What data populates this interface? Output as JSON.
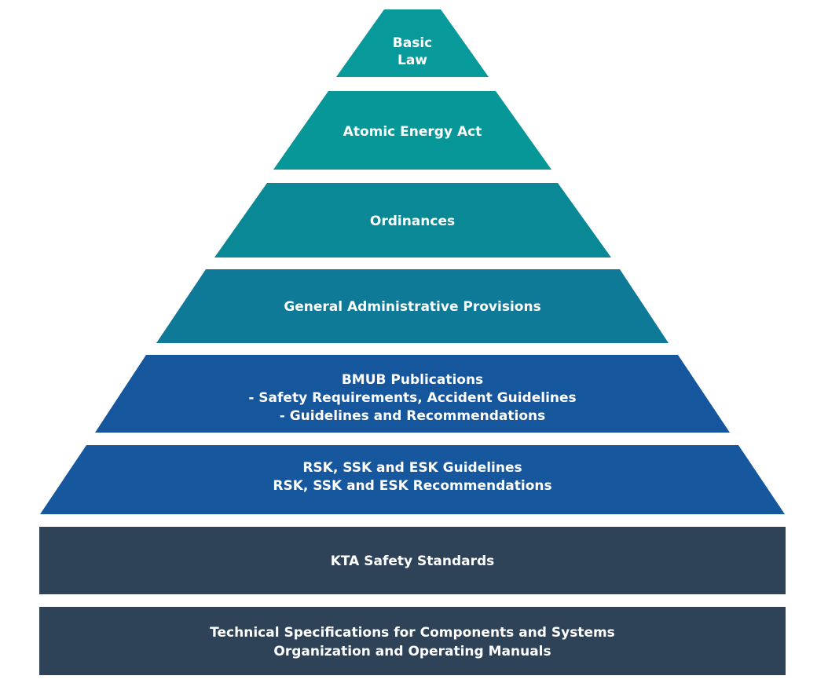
{
  "levels": [
    {
      "lines": [
        "Basic",
        "Law"
      ],
      "color": "#08999a"
    },
    {
      "lines": [
        "Atomic Energy Act"
      ],
      "color": "#089798"
    },
    {
      "lines": [
        "Ordinances"
      ],
      "color": "#0a8896"
    },
    {
      "lines": [
        "General Administrative Provisions"
      ],
      "color": "#0f7a98"
    },
    {
      "lines": [
        "BMUB Publications",
        "- Safety Requirements, Accident Guidelines",
        "- Guidelines and Recommendations"
      ],
      "color": "#16569c"
    },
    {
      "lines": [
        "RSK, SSK and ESK Guidelines",
        "RSK, SSK and ESK Recommendations"
      ],
      "color": "#16579e"
    },
    {
      "lines": [
        "KTA Safety Standards"
      ],
      "color": "#2e4258"
    },
    {
      "lines": [
        "Technical Specifications for Components and Systems",
        "Organization and Operating Manuals"
      ],
      "color": "#2e4258"
    }
  ]
}
